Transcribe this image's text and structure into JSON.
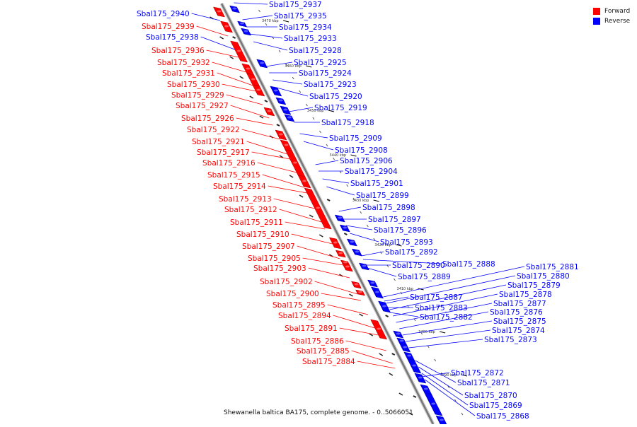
{
  "legend": {
    "forward": {
      "label": "Forward",
      "color": "#ff0000"
    },
    "reverse": {
      "label": "Reverse",
      "color": "#0000ff"
    }
  },
  "caption": "Shewanella baltica BA175, complete genome. - 0..5066051",
  "scale_marks": [
    "3470 kbp",
    "3460 kbp",
    "3450 kbp",
    "3440 kbp",
    "3430 kbp",
    "3420 kbp",
    "3410 kbp",
    "3400 kbp",
    "3390 kbp"
  ],
  "genes": [
    {
      "name": "Sbal175_2940",
      "strand": "reverse"
    },
    {
      "name": "Sbal175_2939",
      "strand": "forward"
    },
    {
      "name": "Sbal175_2938",
      "strand": "reverse"
    },
    {
      "name": "Sbal175_2936",
      "strand": "forward"
    },
    {
      "name": "Sbal175_2932",
      "strand": "forward"
    },
    {
      "name": "Sbal175_2931",
      "strand": "forward"
    },
    {
      "name": "Sbal175_2930",
      "strand": "forward"
    },
    {
      "name": "Sbal175_2929",
      "strand": "forward"
    },
    {
      "name": "Sbal175_2927",
      "strand": "forward"
    },
    {
      "name": "Sbal175_2926",
      "strand": "forward"
    },
    {
      "name": "Sbal175_2922",
      "strand": "forward"
    },
    {
      "name": "Sbal175_2921",
      "strand": "forward"
    },
    {
      "name": "Sbal175_2917",
      "strand": "forward"
    },
    {
      "name": "Sbal175_2916",
      "strand": "forward"
    },
    {
      "name": "Sbal175_2915",
      "strand": "forward"
    },
    {
      "name": "Sbal175_2914",
      "strand": "forward"
    },
    {
      "name": "Sbal175_2913",
      "strand": "forward"
    },
    {
      "name": "Sbal175_2912",
      "strand": "forward"
    },
    {
      "name": "Sbal175_2911",
      "strand": "forward"
    },
    {
      "name": "Sbal175_2910",
      "strand": "forward"
    },
    {
      "name": "Sbal175_2907",
      "strand": "forward"
    },
    {
      "name": "Sbal175_2905",
      "strand": "forward"
    },
    {
      "name": "Sbal175_2903",
      "strand": "forward"
    },
    {
      "name": "Sbal175_2902",
      "strand": "forward"
    },
    {
      "name": "Sbal175_2900",
      "strand": "forward"
    },
    {
      "name": "Sbal175_2895",
      "strand": "forward"
    },
    {
      "name": "Sbal175_2894",
      "strand": "forward"
    },
    {
      "name": "Sbal175_2891",
      "strand": "forward"
    },
    {
      "name": "Sbal175_2886",
      "strand": "forward"
    },
    {
      "name": "Sbal175_2885",
      "strand": "forward"
    },
    {
      "name": "Sbal175_2884",
      "strand": "forward"
    },
    {
      "name": "Sbal175_2937",
      "strand": "reverse"
    },
    {
      "name": "Sbal175_2935",
      "strand": "reverse"
    },
    {
      "name": "Sbal175_2934",
      "strand": "reverse"
    },
    {
      "name": "Sbal175_2933",
      "strand": "reverse"
    },
    {
      "name": "Sbal175_2928",
      "strand": "reverse"
    },
    {
      "name": "Sbal175_2925",
      "strand": "reverse"
    },
    {
      "name": "Sbal175_2924",
      "strand": "reverse"
    },
    {
      "name": "Sbal175_2923",
      "strand": "reverse"
    },
    {
      "name": "Sbal175_2920",
      "strand": "reverse"
    },
    {
      "name": "Sbal175_2919",
      "strand": "reverse"
    },
    {
      "name": "Sbal175_2918",
      "strand": "reverse"
    },
    {
      "name": "Sbal175_2909",
      "strand": "reverse"
    },
    {
      "name": "Sbal175_2908",
      "strand": "reverse"
    },
    {
      "name": "Sbal175_2906",
      "strand": "reverse"
    },
    {
      "name": "Sbal175_2904",
      "strand": "reverse"
    },
    {
      "name": "Sbal175_2901",
      "strand": "reverse"
    },
    {
      "name": "Sbal175_2899",
      "strand": "reverse"
    },
    {
      "name": "Sbal175_2898",
      "strand": "reverse"
    },
    {
      "name": "Sbal175_2897",
      "strand": "reverse"
    },
    {
      "name": "Sbal175_2896",
      "strand": "reverse"
    },
    {
      "name": "Sbal175_2893",
      "strand": "reverse"
    },
    {
      "name": "Sbal175_2892",
      "strand": "reverse"
    },
    {
      "name": "Sbal175_2890",
      "strand": "reverse"
    },
    {
      "name": "Sbal175_2888",
      "strand": "reverse"
    },
    {
      "name": "Sbal175_2889",
      "strand": "reverse"
    },
    {
      "name": "Sbal175_2887",
      "strand": "reverse"
    },
    {
      "name": "Sbal175_2883",
      "strand": "reverse"
    },
    {
      "name": "Sbal175_2882",
      "strand": "reverse"
    },
    {
      "name": "Sbal175_2881",
      "strand": "reverse"
    },
    {
      "name": "Sbal175_2880",
      "strand": "reverse"
    },
    {
      "name": "Sbal175_2879",
      "strand": "reverse"
    },
    {
      "name": "Sbal175_2878",
      "strand": "reverse"
    },
    {
      "name": "Sbal175_2877",
      "strand": "reverse"
    },
    {
      "name": "Sbal175_2876",
      "strand": "reverse"
    },
    {
      "name": "Sbal175_2875",
      "strand": "reverse"
    },
    {
      "name": "Sbal175_2874",
      "strand": "reverse"
    },
    {
      "name": "Sbal175_2873",
      "strand": "reverse"
    },
    {
      "name": "Sbal175_2872",
      "strand": "reverse"
    },
    {
      "name": "Sbal175_2871",
      "strand": "reverse"
    },
    {
      "name": "Sbal175_2870",
      "strand": "reverse"
    },
    {
      "name": "Sbal175_2869",
      "strand": "reverse"
    },
    {
      "name": "Sbal175_2868",
      "strand": "reverse"
    }
  ]
}
